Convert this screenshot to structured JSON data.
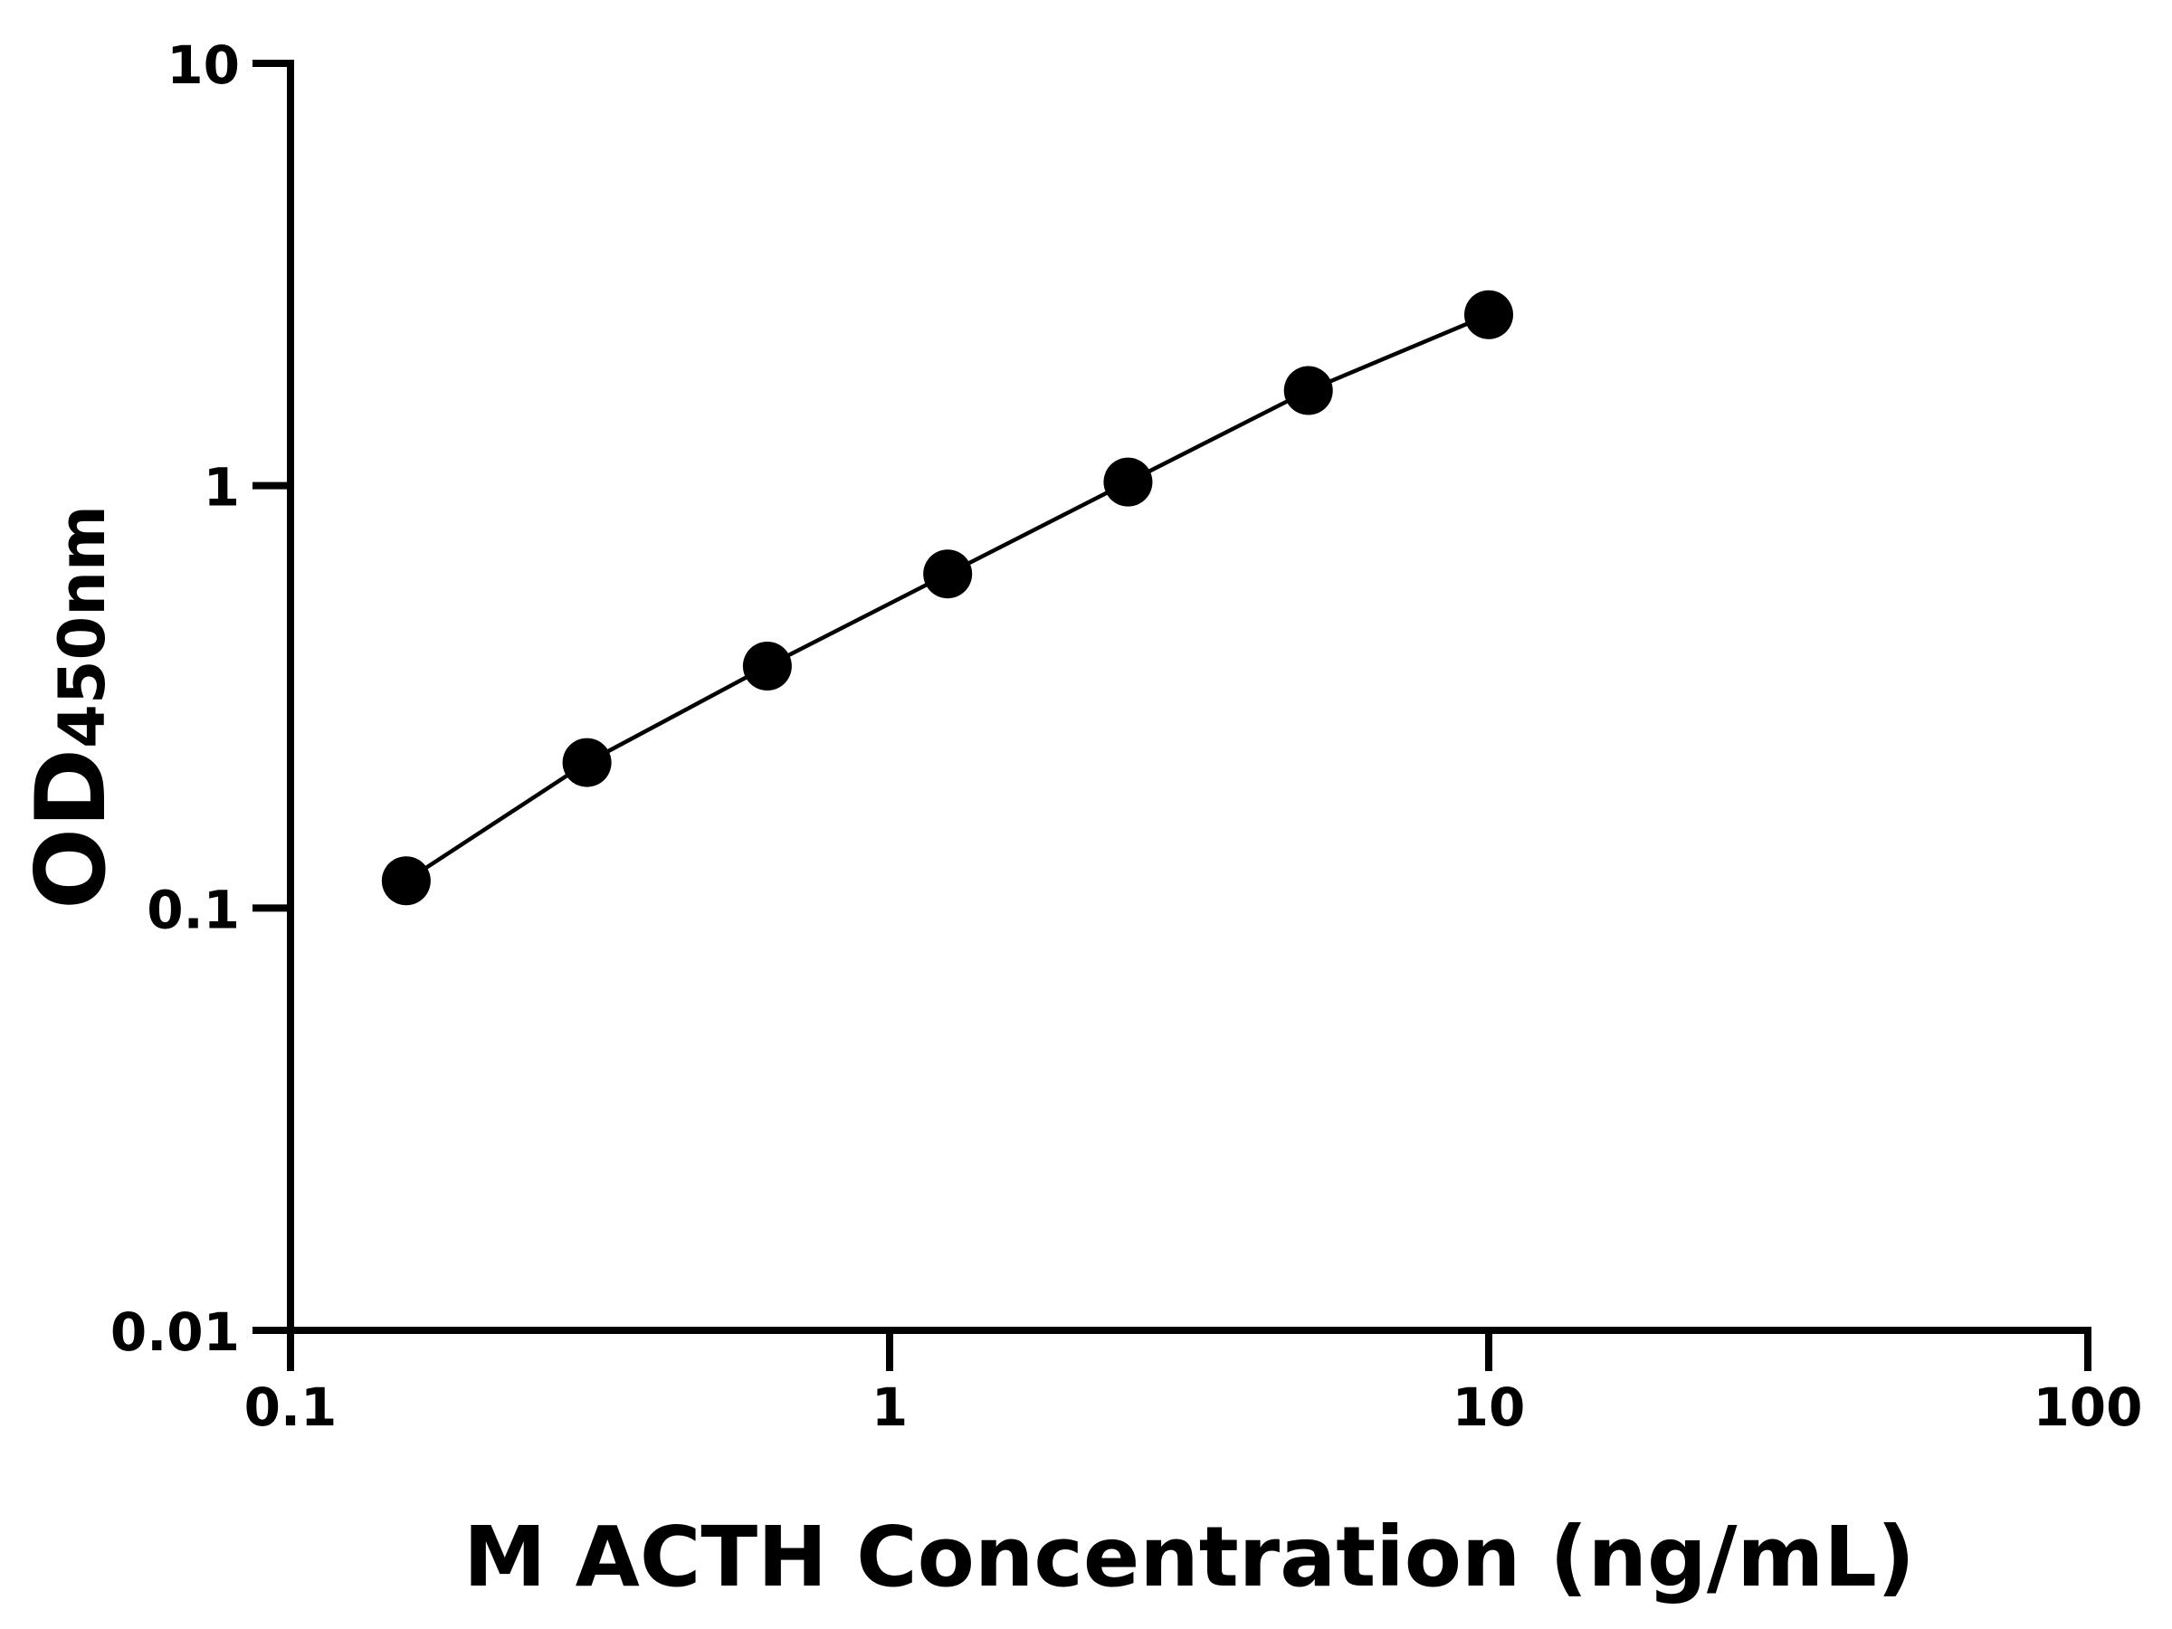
{
  "chart_data": {
    "type": "line",
    "xlabel": "M ACTH Concentration (ng/mL)",
    "ylabel_main": "OD",
    "ylabel_sub": "450nm",
    "xscale": "log",
    "yscale": "log",
    "xlim": [
      0.1,
      100
    ],
    "ylim": [
      0.01,
      10
    ],
    "xticks": [
      0.1,
      1,
      10,
      100
    ],
    "xtick_labels": [
      "0.1",
      "1",
      "10",
      "100"
    ],
    "yticks": [
      0.01,
      0.1,
      1,
      10
    ],
    "ytick_labels": [
      "0.01",
      "0.1",
      "1",
      "10"
    ],
    "grid": false,
    "marker": "filled-circle",
    "color": "#000000",
    "x": [
      0.156,
      0.3125,
      0.625,
      1.25,
      2.5,
      5,
      10
    ],
    "y": [
      0.116,
      0.221,
      0.374,
      0.618,
      1.02,
      1.68,
      2.54
    ]
  }
}
